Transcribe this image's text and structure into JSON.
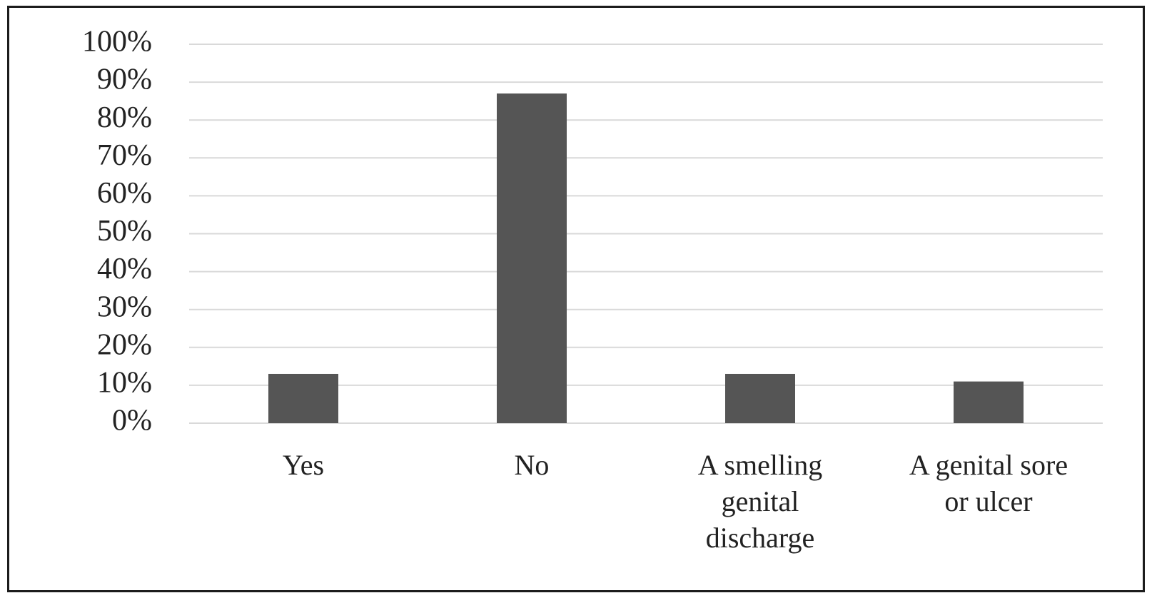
{
  "chart_data": {
    "type": "bar",
    "title": "",
    "xlabel": "",
    "ylabel": "",
    "categories": [
      [
        "Yes"
      ],
      [
        "No"
      ],
      [
        "A smelling",
        "genital",
        "discharge"
      ],
      [
        "A genital sore",
        "or ulcer"
      ]
    ],
    "values": [
      0.13,
      0.87,
      0.13,
      0.11
    ],
    "ylim": [
      0,
      1
    ],
    "yticks": [
      "0%",
      "10%",
      "20%",
      "30%",
      "40%",
      "50%",
      "60%",
      "70%",
      "80%",
      "90%",
      "100%"
    ],
    "grid": true,
    "legend": "none",
    "bar_color": "#555555",
    "grid_color": "#d9d9d9"
  }
}
